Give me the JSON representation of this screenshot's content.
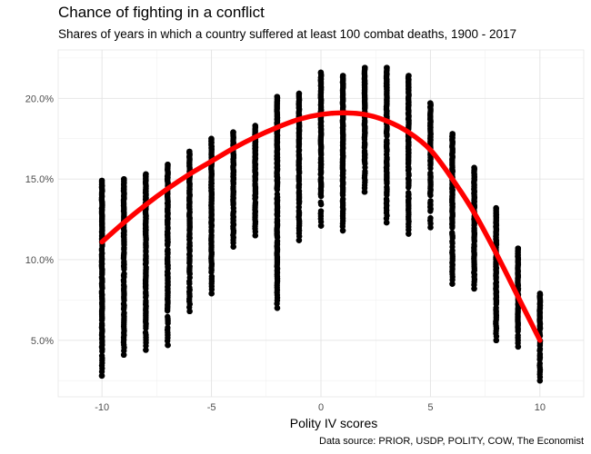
{
  "title": "Chance of fighting in a conflict",
  "subtitle": "Shares of years in which a country suffered at least 100 combat deaths, 1900 - 2017",
  "caption": "Data source: PRIOR, USDP, POLITY, COW, The Economist",
  "chart_data": {
    "type": "scatter",
    "xlabel": "Polity IV scores",
    "ylabel": "",
    "xlim": [
      -12,
      12
    ],
    "ylim": [
      1.5,
      23
    ],
    "xticks": [
      -10,
      -5,
      0,
      5,
      10
    ],
    "xtick_labels": [
      "-10",
      "-5",
      "0",
      "5",
      "10"
    ],
    "yticks": [
      5,
      10,
      15,
      20
    ],
    "ytick_labels": [
      "5.0%",
      "10.0%",
      "15.0%",
      "20.0%"
    ],
    "grid": true,
    "point_color": "#000000",
    "curve_color": "#ff0000",
    "point_ranges": [
      {
        "x": -10,
        "min": 2.8,
        "max": 14.9
      },
      {
        "x": -9,
        "min": 4.1,
        "max": 15.0
      },
      {
        "x": -8,
        "min": 4.4,
        "max": 15.3
      },
      {
        "x": -7,
        "min": 4.7,
        "max": 15.9
      },
      {
        "x": -6,
        "min": 6.8,
        "max": 16.7
      },
      {
        "x": -5,
        "min": 7.9,
        "max": 17.5
      },
      {
        "x": -4,
        "min": 10.8,
        "max": 17.9
      },
      {
        "x": -3,
        "min": 11.5,
        "max": 18.3
      },
      {
        "x": -2,
        "min": 7.0,
        "max": 20.1
      },
      {
        "x": -1,
        "min": 11.2,
        "max": 20.3
      },
      {
        "x": 0,
        "min": 12.1,
        "max": 21.6
      },
      {
        "x": 1,
        "min": 11.8,
        "max": 21.4
      },
      {
        "x": 2,
        "min": 14.2,
        "max": 21.9
      },
      {
        "x": 3,
        "min": 12.3,
        "max": 21.9
      },
      {
        "x": 4,
        "min": 11.6,
        "max": 21.4
      },
      {
        "x": 5,
        "min": 12.0,
        "max": 19.7
      },
      {
        "x": 6,
        "min": 8.5,
        "max": 17.8
      },
      {
        "x": 7,
        "min": 8.2,
        "max": 15.7
      },
      {
        "x": 8,
        "min": 5.0,
        "max": 13.2
      },
      {
        "x": 9,
        "min": 4.6,
        "max": 10.7
      },
      {
        "x": 10,
        "min": 2.5,
        "max": 7.9
      }
    ],
    "fit_curve": {
      "x": [
        -10,
        -9,
        -8,
        -7,
        -6,
        -5,
        -4,
        -3,
        -2,
        -1,
        0,
        1,
        2,
        3,
        4,
        5,
        6,
        7,
        8,
        9,
        10
      ],
      "y": [
        11.1,
        12.3,
        13.4,
        14.4,
        15.3,
        16.1,
        16.9,
        17.6,
        18.2,
        18.7,
        19.0,
        19.1,
        19.0,
        18.6,
        17.9,
        16.8,
        15.0,
        12.9,
        10.4,
        7.7,
        5.0
      ]
    }
  }
}
